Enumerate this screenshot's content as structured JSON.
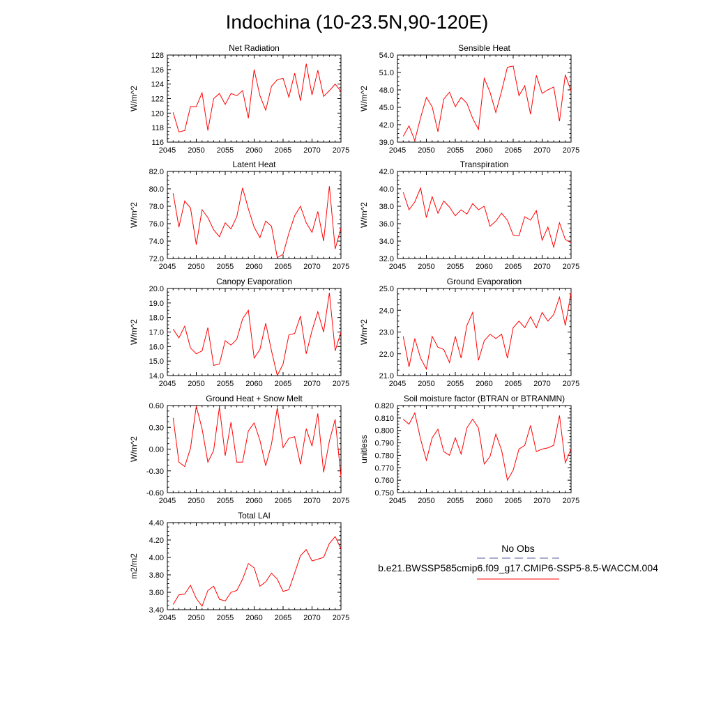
{
  "figure": {
    "title": "Indochina (10-23.5N,90-120E)"
  },
  "legend": {
    "obs_label": "No Obs",
    "model_label": "b.e21.BWSSP585cmip6.f09_g17.CMIP6-SSP5-8.5-WACCM.004",
    "obs_color": "#5a5aa0",
    "model_color": "#ff0000"
  },
  "series_color": "#ff0000",
  "chart_data": [
    {
      "type": "line",
      "title": "Net Radiation",
      "ylabel": "W/m^2",
      "xlabel": "",
      "xlim": [
        2045,
        2075
      ],
      "ylim": [
        116,
        128
      ],
      "xticks": [
        2045,
        2050,
        2055,
        2060,
        2065,
        2070,
        2075
      ],
      "xtick_labels": [
        "2045",
        "2050",
        "2055",
        "2060",
        "2065",
        "2070",
        "2075"
      ],
      "yticks": [
        116,
        118,
        120,
        122,
        124,
        126,
        128
      ],
      "ytick_labels": [
        "116",
        "118",
        "120",
        "122",
        "124",
        "126",
        "128"
      ],
      "x": [
        2046,
        2047,
        2048,
        2049,
        2050,
        2051,
        2052,
        2053,
        2054,
        2055,
        2056,
        2057,
        2058,
        2059,
        2060,
        2061,
        2062,
        2063,
        2064,
        2065,
        2066,
        2067,
        2068,
        2069,
        2070,
        2071,
        2072,
        2073,
        2074,
        2075
      ],
      "values": [
        120.1,
        117.4,
        117.6,
        120.9,
        120.9,
        122.8,
        117.6,
        122.0,
        122.7,
        121.2,
        122.7,
        122.4,
        123.1,
        119.3,
        126.0,
        122.4,
        120.4,
        123.7,
        124.6,
        124.8,
        122.2,
        125.5,
        121.7,
        126.8,
        122.5,
        125.9,
        122.3,
        123.1,
        124.0,
        123.0
      ]
    },
    {
      "type": "line",
      "title": "Sensible Heat",
      "ylabel": "W/m^2",
      "xlabel": "",
      "xlim": [
        2045,
        2075
      ],
      "ylim": [
        39.0,
        54.0
      ],
      "xticks": [
        2045,
        2050,
        2055,
        2060,
        2065,
        2070,
        2075
      ],
      "xtick_labels": [
        "2045",
        "2050",
        "2055",
        "2060",
        "2065",
        "2070",
        "2075"
      ],
      "yticks": [
        39.0,
        42.0,
        45.0,
        48.0,
        51.0,
        54.0
      ],
      "ytick_labels": [
        "39.0",
        "42.0",
        "45.0",
        "48.0",
        "51.0",
        "54.0"
      ],
      "x": [
        2046,
        2047,
        2048,
        2049,
        2050,
        2051,
        2052,
        2053,
        2054,
        2055,
        2056,
        2057,
        2058,
        2059,
        2060,
        2061,
        2062,
        2063,
        2064,
        2065,
        2066,
        2067,
        2068,
        2069,
        2070,
        2071,
        2072,
        2073,
        2074,
        2075
      ],
      "values": [
        40.0,
        41.8,
        39.3,
        43.2,
        46.7,
        45.1,
        40.8,
        46.4,
        47.6,
        45.1,
        46.7,
        45.7,
        43.1,
        41.2,
        50.0,
        47.6,
        44.1,
        47.8,
        51.9,
        52.1,
        47.0,
        48.7,
        43.8,
        50.5,
        47.4,
        48.0,
        48.5,
        42.6,
        50.6,
        47.8
      ]
    },
    {
      "type": "line",
      "title": "Latent Heat",
      "ylabel": "W/m^2",
      "xlabel": "",
      "xlim": [
        2045,
        2075
      ],
      "ylim": [
        72.0,
        82.0
      ],
      "xticks": [
        2045,
        2050,
        2055,
        2060,
        2065,
        2070,
        2075
      ],
      "xtick_labels": [
        "2045",
        "2050",
        "2055",
        "2060",
        "2065",
        "2070",
        "2075"
      ],
      "yticks": [
        72.0,
        74.0,
        76.0,
        78.0,
        80.0,
        82.0
      ],
      "ytick_labels": [
        "72.0",
        "74.0",
        "76.0",
        "78.0",
        "80.0",
        "82.0"
      ],
      "x": [
        2046,
        2047,
        2048,
        2049,
        2050,
        2051,
        2052,
        2053,
        2054,
        2055,
        2056,
        2057,
        2058,
        2059,
        2060,
        2061,
        2062,
        2063,
        2064,
        2065,
        2066,
        2067,
        2068,
        2069,
        2070,
        2071,
        2072,
        2073,
        2074,
        2075
      ],
      "values": [
        79.5,
        75.6,
        78.6,
        77.8,
        73.6,
        77.6,
        76.7,
        75.3,
        74.5,
        76.1,
        75.4,
        76.8,
        80.1,
        77.7,
        75.6,
        74.4,
        76.3,
        75.7,
        72.1,
        72.5,
        74.9,
        76.9,
        78.0,
        76.1,
        75.0,
        77.4,
        74.0,
        80.3,
        73.1,
        75.5
      ]
    },
    {
      "type": "line",
      "title": "Transpiration",
      "ylabel": "W/m^2",
      "xlabel": "",
      "xlim": [
        2045,
        2075
      ],
      "ylim": [
        32.0,
        42.0
      ],
      "xticks": [
        2045,
        2050,
        2055,
        2060,
        2065,
        2070,
        2075
      ],
      "xtick_labels": [
        "2045",
        "2050",
        "2055",
        "2060",
        "2065",
        "2070",
        "2075"
      ],
      "yticks": [
        32.0,
        34.0,
        36.0,
        38.0,
        40.0,
        42.0
      ],
      "ytick_labels": [
        "32.0",
        "34.0",
        "36.0",
        "38.0",
        "40.0",
        "42.0"
      ],
      "x": [
        2046,
        2047,
        2048,
        2049,
        2050,
        2051,
        2052,
        2053,
        2054,
        2055,
        2056,
        2057,
        2058,
        2059,
        2060,
        2061,
        2062,
        2063,
        2064,
        2065,
        2066,
        2067,
        2068,
        2069,
        2070,
        2071,
        2072,
        2073,
        2074,
        2075
      ],
      "values": [
        39.6,
        37.6,
        38.5,
        40.1,
        36.7,
        39.1,
        37.2,
        38.6,
        37.9,
        36.9,
        37.6,
        37.1,
        38.3,
        37.6,
        38.0,
        35.7,
        36.3,
        37.2,
        36.4,
        34.7,
        34.6,
        36.8,
        36.4,
        37.5,
        34.1,
        35.6,
        33.3,
        36.1,
        34.2,
        33.8
      ]
    },
    {
      "type": "line",
      "title": "Canopy Evaporation",
      "ylabel": "W/m^2",
      "xlabel": "",
      "xlim": [
        2045,
        2075
      ],
      "ylim": [
        14.0,
        20.0
      ],
      "xticks": [
        2045,
        2050,
        2055,
        2060,
        2065,
        2070,
        2075
      ],
      "xtick_labels": [
        "2045",
        "2050",
        "2055",
        "2060",
        "2065",
        "2070",
        "2075"
      ],
      "yticks": [
        14.0,
        15.0,
        16.0,
        17.0,
        18.0,
        19.0,
        20.0
      ],
      "ytick_labels": [
        "14.0",
        "15.0",
        "16.0",
        "17.0",
        "18.0",
        "19.0",
        "20.0"
      ],
      "x": [
        2046,
        2047,
        2048,
        2049,
        2050,
        2051,
        2052,
        2053,
        2054,
        2055,
        2056,
        2057,
        2058,
        2059,
        2060,
        2061,
        2062,
        2063,
        2064,
        2065,
        2066,
        2067,
        2068,
        2069,
        2070,
        2071,
        2072,
        2073,
        2074,
        2075
      ],
      "values": [
        17.2,
        16.6,
        17.4,
        15.9,
        15.5,
        15.7,
        17.3,
        14.7,
        14.8,
        16.4,
        16.1,
        16.5,
        17.9,
        18.5,
        15.2,
        15.8,
        17.6,
        15.7,
        14.0,
        14.8,
        16.8,
        16.9,
        18.1,
        15.5,
        17.1,
        18.4,
        17.0,
        19.7,
        15.7,
        17.0
      ]
    },
    {
      "type": "line",
      "title": "Ground Evaporation",
      "ylabel": "W/m^2",
      "xlabel": "",
      "xlim": [
        2045,
        2075
      ],
      "ylim": [
        21.0,
        25.0
      ],
      "xticks": [
        2045,
        2050,
        2055,
        2060,
        2065,
        2070,
        2075
      ],
      "xtick_labels": [
        "2045",
        "2050",
        "2055",
        "2060",
        "2065",
        "2070",
        "2075"
      ],
      "yticks": [
        21.0,
        22.0,
        23.0,
        24.0,
        25.0
      ],
      "ytick_labels": [
        "21.0",
        "22.0",
        "23.0",
        "24.0",
        "25.0"
      ],
      "x": [
        2046,
        2047,
        2048,
        2049,
        2050,
        2051,
        2052,
        2053,
        2054,
        2055,
        2056,
        2057,
        2058,
        2059,
        2060,
        2061,
        2062,
        2063,
        2064,
        2065,
        2066,
        2067,
        2068,
        2069,
        2070,
        2071,
        2072,
        2073,
        2074,
        2075
      ],
      "values": [
        22.8,
        21.4,
        22.7,
        21.8,
        21.3,
        22.8,
        22.3,
        22.2,
        21.6,
        22.8,
        21.8,
        23.3,
        23.9,
        21.7,
        22.6,
        22.9,
        22.7,
        22.9,
        21.8,
        23.2,
        23.5,
        23.2,
        23.7,
        23.2,
        23.9,
        23.5,
        23.8,
        24.6,
        23.3,
        24.8
      ]
    },
    {
      "type": "line",
      "title": "Ground Heat + Snow Melt",
      "ylabel": "W/m^2",
      "xlabel": "",
      "xlim": [
        2045,
        2075
      ],
      "ylim": [
        -0.6,
        0.6
      ],
      "xticks": [
        2045,
        2050,
        2055,
        2060,
        2065,
        2070,
        2075
      ],
      "xtick_labels": [
        "2045",
        "2050",
        "2055",
        "2060",
        "2065",
        "2070",
        "2075"
      ],
      "yticks": [
        -0.6,
        -0.3,
        0.0,
        0.3,
        0.6
      ],
      "ytick_labels": [
        "-0.60",
        "-0.30",
        "0.00",
        "0.30",
        "0.60"
      ],
      "x": [
        2046,
        2047,
        2048,
        2049,
        2050,
        2051,
        2052,
        2053,
        2054,
        2055,
        2056,
        2057,
        2058,
        2059,
        2060,
        2061,
        2062,
        2063,
        2064,
        2065,
        2066,
        2067,
        2068,
        2069,
        2070,
        2071,
        2072,
        2073,
        2074,
        2075
      ],
      "values": [
        0.43,
        -0.18,
        -0.24,
        0.01,
        0.59,
        0.28,
        -0.18,
        -0.02,
        0.58,
        -0.09,
        0.37,
        -0.18,
        -0.18,
        0.25,
        0.36,
        0.12,
        -0.23,
        0.07,
        0.57,
        0.02,
        0.15,
        0.17,
        -0.21,
        0.28,
        0.04,
        0.49,
        -0.32,
        0.11,
        0.41,
        -0.38
      ]
    },
    {
      "type": "line",
      "title": "Soil moisture factor (BTRAN or BTRANMN)",
      "ylabel": "unitless",
      "xlabel": "",
      "xlim": [
        2045,
        2075
      ],
      "ylim": [
        0.75,
        0.82
      ],
      "xticks": [
        2045,
        2050,
        2055,
        2060,
        2065,
        2070,
        2075
      ],
      "xtick_labels": [
        "2045",
        "2050",
        "2055",
        "2060",
        "2065",
        "2070",
        "2075"
      ],
      "yticks": [
        0.75,
        0.76,
        0.77,
        0.78,
        0.79,
        0.8,
        0.81,
        0.82
      ],
      "ytick_labels": [
        "0.750",
        "0.760",
        "0.770",
        "0.780",
        "0.790",
        "0.800",
        "0.810",
        "0.820"
      ],
      "x": [
        2046,
        2047,
        2048,
        2049,
        2050,
        2051,
        2052,
        2053,
        2054,
        2055,
        2056,
        2057,
        2058,
        2059,
        2060,
        2061,
        2062,
        2063,
        2064,
        2065,
        2066,
        2067,
        2068,
        2069,
        2070,
        2071,
        2072,
        2073,
        2074,
        2075
      ],
      "values": [
        0.809,
        0.805,
        0.814,
        0.793,
        0.776,
        0.794,
        0.801,
        0.783,
        0.78,
        0.794,
        0.781,
        0.802,
        0.809,
        0.802,
        0.773,
        0.779,
        0.797,
        0.784,
        0.76,
        0.768,
        0.785,
        0.788,
        0.804,
        0.783,
        0.785,
        0.786,
        0.788,
        0.812,
        0.774,
        0.785
      ]
    },
    {
      "type": "line",
      "title": "Total LAI",
      "ylabel": "m2/m2",
      "xlabel": "",
      "xlim": [
        2045,
        2075
      ],
      "ylim": [
        3.4,
        4.4
      ],
      "xticks": [
        2045,
        2050,
        2055,
        2060,
        2065,
        2070,
        2075
      ],
      "xtick_labels": [
        "2045",
        "2050",
        "2055",
        "2060",
        "2065",
        "2070",
        "2075"
      ],
      "yticks": [
        3.4,
        3.6,
        3.8,
        4.0,
        4.2,
        4.4
      ],
      "ytick_labels": [
        "3.40",
        "3.60",
        "3.80",
        "4.00",
        "4.20",
        "4.40"
      ],
      "x": [
        2046,
        2047,
        2048,
        2049,
        2050,
        2051,
        2052,
        2053,
        2054,
        2055,
        2056,
        2057,
        2058,
        2059,
        2060,
        2061,
        2062,
        2063,
        2064,
        2065,
        2066,
        2067,
        2068,
        2069,
        2070,
        2071,
        2072,
        2073,
        2074,
        2075
      ],
      "values": [
        3.46,
        3.57,
        3.58,
        3.68,
        3.53,
        3.44,
        3.62,
        3.67,
        3.52,
        3.5,
        3.6,
        3.62,
        3.75,
        3.93,
        3.88,
        3.67,
        3.72,
        3.82,
        3.75,
        3.61,
        3.63,
        3.82,
        4.02,
        4.09,
        3.96,
        3.98,
        4.0,
        4.16,
        4.24,
        4.1
      ]
    }
  ]
}
